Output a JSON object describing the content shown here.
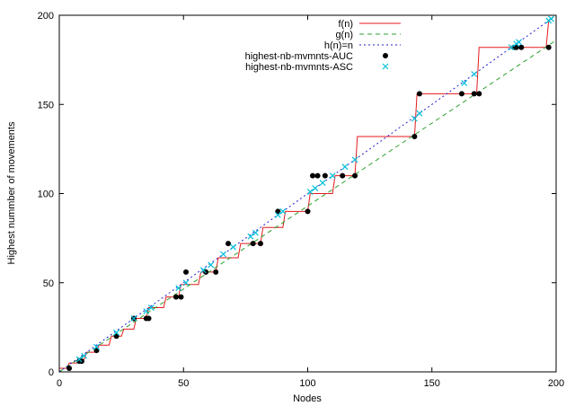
{
  "chart_data": {
    "type": "line",
    "title": "",
    "xlabel": "Nodes",
    "ylabel": "Highest nummber of movements",
    "xlim": [
      0,
      200
    ],
    "ylim": [
      0,
      200
    ],
    "xticks": [
      "0",
      "50",
      "100",
      "150",
      "200"
    ],
    "yticks": [
      "0",
      "50",
      "100",
      "150",
      "200"
    ],
    "grid": false,
    "legend_position": "top-right",
    "series": [
      {
        "name": "f(n)",
        "kind": "step",
        "color": "#e41a1c",
        "dash": "solid",
        "x": [
          0,
          3,
          4,
          7,
          8,
          10,
          11,
          15,
          16,
          20,
          21,
          25,
          26,
          30,
          31,
          35,
          36,
          42,
          43,
          48,
          49,
          56,
          57,
          63,
          64,
          72,
          73,
          81,
          82,
          90,
          91,
          100,
          101,
          110,
          111,
          119,
          120,
          143,
          144,
          156,
          157,
          168,
          169,
          196,
          197
        ],
        "y": [
          2,
          2,
          5,
          5,
          7,
          7,
          11,
          11,
          15,
          15,
          20,
          20,
          24,
          24,
          30,
          30,
          36,
          36,
          42,
          42,
          49,
          49,
          56,
          56,
          64,
          64,
          72,
          72,
          81,
          81,
          90,
          90,
          100,
          100,
          110,
          110,
          132,
          132,
          156,
          156,
          156,
          156,
          182,
          182,
          197
        ]
      },
      {
        "name": "g(n)",
        "kind": "line",
        "color": "#2ca02c",
        "dash": "5,4",
        "x": [
          0,
          200
        ],
        "y": [
          0,
          186
        ]
      },
      {
        "name": "h(n)=n",
        "kind": "line",
        "color": "#1f1fcf",
        "dash": "2,3",
        "x": [
          0,
          200
        ],
        "y": [
          0,
          200
        ]
      },
      {
        "name": "highest-nb-mvmnts-AUC",
        "kind": "points",
        "marker": "dot",
        "color": "#000000",
        "x": [
          4,
          8,
          9,
          15,
          23,
          30,
          35,
          36,
          47,
          49,
          51,
          59,
          63,
          68,
          78,
          81,
          88,
          100,
          102,
          104,
          107,
          114,
          119,
          143,
          145,
          162,
          167,
          169,
          183,
          184,
          186,
          197
        ],
        "y": [
          2,
          6,
          6,
          12,
          20,
          30,
          30,
          30,
          42,
          42,
          56,
          56,
          56,
          72,
          72,
          72,
          90,
          90,
          110,
          110,
          110,
          110,
          110,
          132,
          156,
          156,
          156,
          156,
          182,
          182,
          182,
          182
        ]
      },
      {
        "name": "highest-nb-mvmnts-ASC",
        "kind": "points",
        "marker": "x",
        "color": "#00c0d8",
        "x": [
          8,
          10,
          15,
          23,
          30,
          35,
          37,
          48,
          51,
          58,
          61,
          66,
          70,
          77,
          79,
          88,
          90,
          101,
          103,
          106,
          110,
          115,
          119,
          143,
          145,
          163,
          167,
          182,
          184,
          185,
          197,
          198
        ],
        "y": [
          7,
          9,
          14,
          22,
          30,
          34,
          36,
          47,
          50,
          57,
          60,
          66,
          70,
          76,
          78,
          88,
          90,
          101,
          103,
          106,
          110,
          115,
          119,
          142,
          145,
          162,
          167,
          182,
          184,
          185,
          197,
          198
        ]
      }
    ]
  }
}
